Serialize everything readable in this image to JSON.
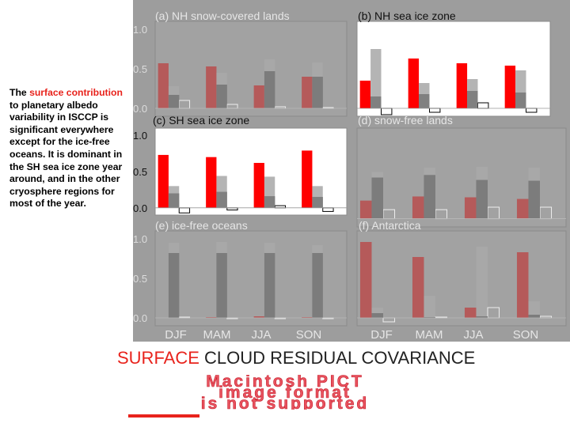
{
  "side_text": {
    "pre": "The ",
    "highlight": "surface contribution",
    "post": " to planetary albedo variability in ISCCP is significant everywhere except for the ice-free oceans.  It is dominant in the SH sea ice zone year around, and in the other cryosphere regions for most of the year."
  },
  "footer": {
    "surface": "SURFACE",
    "rest": " CLOUD  RESIDUAL COVARIANCE"
  },
  "pict_message": {
    "line1": "Macintosh PICT",
    "line2": "image format",
    "line3": "is not supported"
  },
  "colors": {
    "surface": "#ff0000",
    "cloud": "#b4b4b4",
    "residual": "#808080",
    "covariance_outline": "#000000",
    "gray_panel": "#9d9d9d"
  },
  "chart_data": [
    {
      "type": "bar",
      "title": "(a) NH snow-covered lands",
      "categories": [
        "DJF",
        "MAM",
        "JJA",
        "SON"
      ],
      "ylim": [
        -0.1,
        1.1
      ],
      "yticks": [
        "1.0",
        "0.5",
        "0.0"
      ],
      "series": [
        {
          "name": "surface",
          "values": [
            0.57,
            0.53,
            0.29,
            0.4
          ]
        },
        {
          "name": "cloud",
          "values": [
            0.28,
            0.45,
            0.62,
            0.58
          ]
        },
        {
          "name": "residual",
          "values": [
            0.17,
            0.3,
            0.47,
            0.4
          ]
        },
        {
          "name": "covariance",
          "values": [
            0.1,
            0.05,
            0.02,
            0.01
          ]
        }
      ]
    },
    {
      "type": "bar",
      "title": "(b) NH sea ice zone",
      "categories": [
        "DJF",
        "MAM",
        "JJA",
        "SON"
      ],
      "ylim": [
        -0.1,
        1.1
      ],
      "yticks": [],
      "series": [
        {
          "name": "surface",
          "values": [
            0.35,
            0.63,
            0.57,
            0.54
          ]
        },
        {
          "name": "cloud",
          "values": [
            0.75,
            0.32,
            0.37,
            0.48
          ]
        },
        {
          "name": "residual",
          "values": [
            0.15,
            0.18,
            0.22,
            0.2
          ]
        },
        {
          "name": "covariance",
          "values": [
            -0.08,
            -0.05,
            0.07,
            -0.05
          ]
        }
      ]
    },
    {
      "type": "bar",
      "title": "(c) SH sea ice zone",
      "categories": [
        "DJF",
        "MAM",
        "JJA",
        "SON"
      ],
      "ylim": [
        -0.1,
        1.1
      ],
      "yticks": [
        "1.0",
        "0.5",
        "0.0"
      ],
      "series": [
        {
          "name": "surface",
          "values": [
            0.73,
            0.7,
            0.62,
            0.79
          ]
        },
        {
          "name": "cloud",
          "values": [
            0.3,
            0.44,
            0.43,
            0.3
          ]
        },
        {
          "name": "residual",
          "values": [
            0.2,
            0.22,
            0.16,
            0.15
          ]
        },
        {
          "name": "covariance",
          "values": [
            -0.07,
            -0.03,
            0.03,
            -0.05
          ]
        }
      ]
    },
    {
      "type": "bar",
      "title": "(d) snow-free lands",
      "categories": [
        "DJF",
        "MAM",
        "JJA",
        "SON"
      ],
      "ylim": [
        -0.1,
        1.1
      ],
      "yticks": [],
      "series": [
        {
          "name": "surface",
          "values": [
            0.22,
            0.27,
            0.26,
            0.24
          ]
        },
        {
          "name": "cloud",
          "values": [
            0.57,
            0.62,
            0.63,
            0.62
          ]
        },
        {
          "name": "residual",
          "values": [
            0.5,
            0.53,
            0.47,
            0.46
          ]
        },
        {
          "name": "covariance",
          "values": [
            0.11,
            0.11,
            0.14,
            0.14
          ]
        }
      ]
    },
    {
      "type": "bar",
      "title": "(e) ice-free oceans",
      "categories": [
        "DJF",
        "MAM",
        "JJA",
        "SON"
      ],
      "ylim": [
        -0.1,
        1.1
      ],
      "yticks": [
        "1.0",
        "0.5",
        "0.0"
      ],
      "series": [
        {
          "name": "surface",
          "values": [
            0.0,
            0.01,
            0.02,
            0.01
          ]
        },
        {
          "name": "cloud",
          "values": [
            0.95,
            0.96,
            0.95,
            0.92
          ]
        },
        {
          "name": "residual",
          "values": [
            0.82,
            0.82,
            0.82,
            0.82
          ]
        },
        {
          "name": "covariance",
          "values": [
            0.01,
            0.0,
            0.0,
            0.0
          ]
        }
      ]
    },
    {
      "type": "bar",
      "title": "(f) Antarctica",
      "categories": [
        "DJF",
        "MAM",
        "JJA",
        "SON"
      ],
      "ylim": [
        -0.1,
        1.1
      ],
      "yticks": [],
      "series": [
        {
          "name": "surface",
          "values": [
            0.96,
            0.77,
            0.13,
            0.83
          ]
        },
        {
          "name": "cloud",
          "values": [
            0.13,
            0.28,
            0.9,
            0.21
          ]
        },
        {
          "name": "residual",
          "values": [
            0.06,
            0.01,
            0.02,
            0.04
          ]
        },
        {
          "name": "covariance",
          "values": [
            -0.05,
            0.01,
            0.13,
            0.02
          ]
        }
      ]
    }
  ]
}
